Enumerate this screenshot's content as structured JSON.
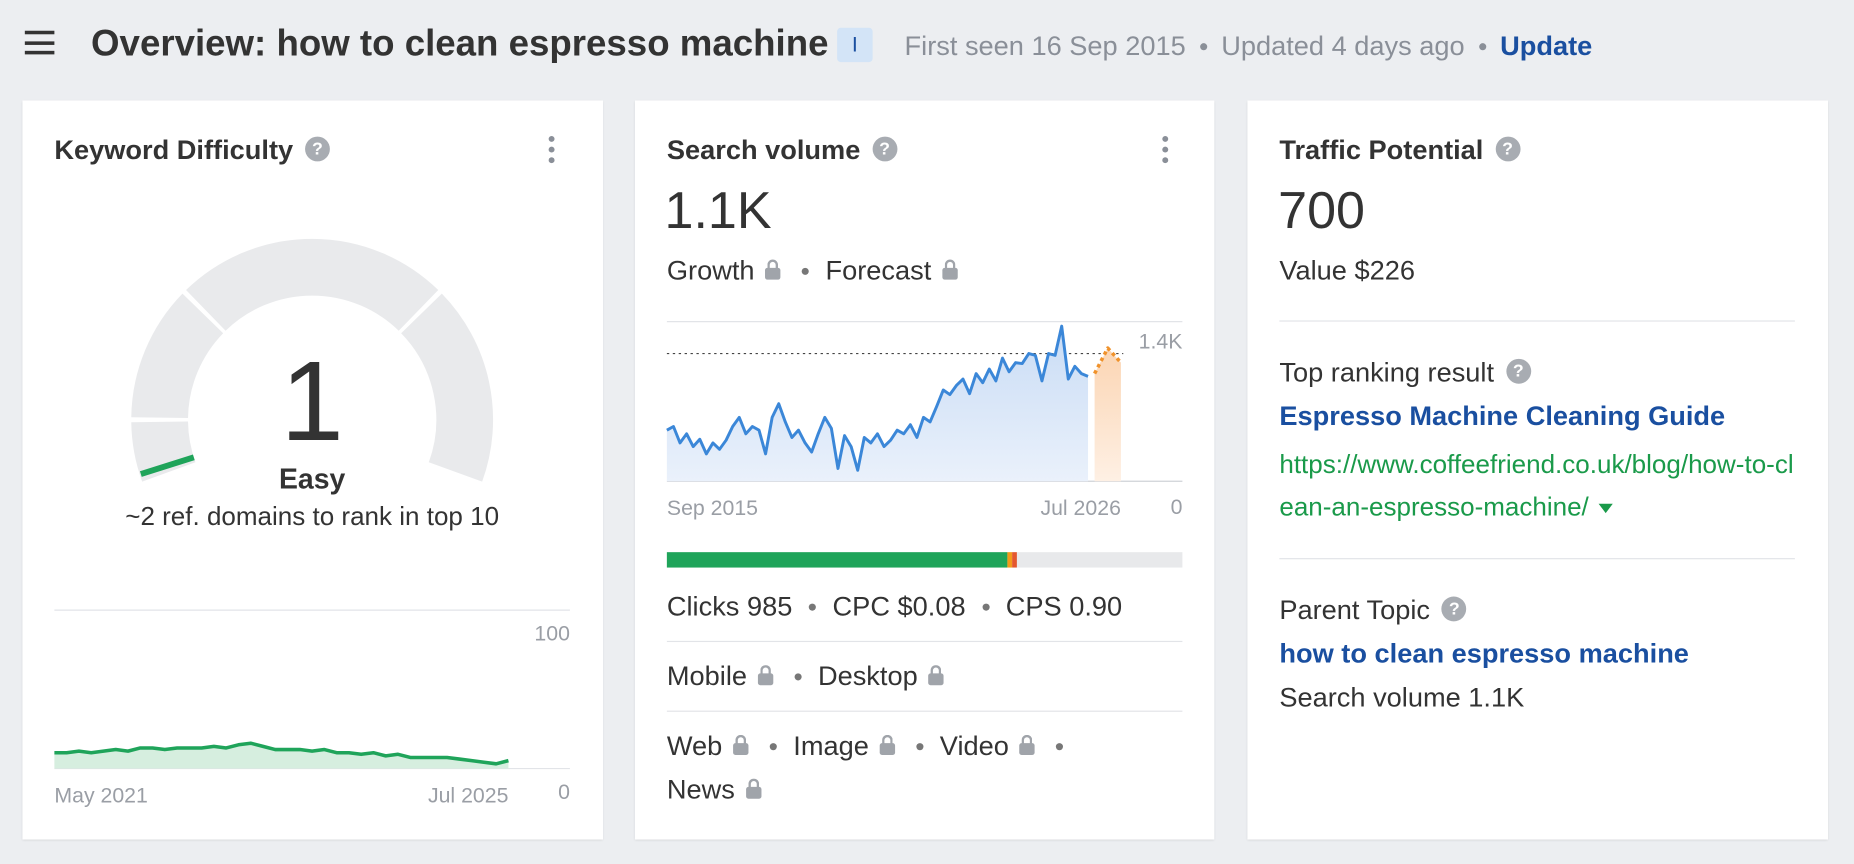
{
  "header": {
    "title": "Overview: how to clean espresso machine",
    "intent_badge": "I",
    "first_seen": "First seen 16 Sep 2015",
    "updated": "Updated 4 days ago",
    "update_link": "Update"
  },
  "keyword_difficulty": {
    "title": "Keyword Difficulty",
    "score": 1,
    "label": "Easy",
    "note": "~2 ref. domains to rank in top 10",
    "chart": {
      "type": "area",
      "color": "#1fa45a",
      "x_labels": [
        "May 2021",
        "Jul 2025"
      ],
      "ylim": [
        0,
        100
      ],
      "yticks": [
        0,
        100
      ],
      "values": [
        10,
        10,
        11,
        10,
        11,
        12,
        11,
        13,
        13,
        12,
        13,
        13,
        13,
        14,
        13,
        15,
        16,
        14,
        12,
        12,
        12,
        11,
        12,
        10,
        10,
        9,
        10,
        8,
        9,
        7,
        7,
        7,
        7,
        6,
        5,
        4,
        3,
        5
      ]
    }
  },
  "search_volume": {
    "title": "Search volume",
    "volume": "1.1K",
    "metrics": [
      "Growth",
      "Forecast"
    ],
    "chart": {
      "type": "line",
      "x_labels": [
        "Sep 2015",
        "Jul 2026"
      ],
      "ylim": [
        0,
        1750
      ],
      "yticks": [
        0,
        {
          "value": 1400,
          "label": "1.4K"
        }
      ],
      "series": [
        {
          "color": "#3b87d8",
          "values": [
            560,
            600,
            420,
            520,
            380,
            460,
            300,
            420,
            350,
            450,
            600,
            700,
            520,
            600,
            560,
            300,
            700,
            850,
            650,
            480,
            560,
            420,
            320,
            520,
            700,
            580,
            140,
            500,
            380,
            120,
            480,
            420,
            520,
            380,
            450,
            560,
            520,
            620,
            480,
            700,
            650,
            820,
            1000,
            950,
            1050,
            1120,
            960,
            1180,
            1080,
            1230,
            1100,
            1350,
            1200,
            1300,
            1290,
            1400,
            1380,
            1100,
            1400,
            1380,
            1700,
            1120,
            1260,
            1180,
            1150,
            null,
            null,
            null,
            null,
            null
          ]
        },
        {
          "color": "#f0922b",
          "values": [
            null,
            null,
            null,
            null,
            null,
            null,
            null,
            null,
            null,
            null,
            null,
            null,
            null,
            null,
            null,
            null,
            null,
            null,
            null,
            null,
            null,
            null,
            null,
            null,
            null,
            null,
            null,
            null,
            null,
            null,
            null,
            null,
            null,
            null,
            null,
            null,
            null,
            null,
            null,
            null,
            null,
            null,
            null,
            null,
            null,
            null,
            null,
            null,
            null,
            null,
            null,
            null,
            null,
            null,
            null,
            null,
            null,
            null,
            null,
            null,
            null,
            null,
            null,
            null,
            null,
            1180,
            1320,
            1460,
            1380,
            1300
          ]
        }
      ]
    },
    "click_bar": [
      {
        "color": "#1fa45a",
        "value": 66
      },
      {
        "color": "#f29a1a",
        "value": 1
      },
      {
        "color": "#e4572e",
        "value": 1
      }
    ],
    "stats": [
      "Clicks 985",
      "CPC $0.08",
      "CPS 0.90"
    ],
    "devices": [
      "Mobile",
      "Desktop"
    ],
    "serp_types": [
      "Web",
      "Image",
      "Video",
      "News"
    ]
  },
  "traffic_potential": {
    "title": "Traffic Potential",
    "value": "700",
    "value_usd": "Value $226",
    "top_result_title": "Top ranking result",
    "top_result_name": "Espresso Machine Cleaning Guide",
    "top_result_url": "https://www.coffeefriend.co.uk/blog/how-to-clean-an-espresso-machine/",
    "parent_topic_title": "Parent Topic",
    "parent_topic": "how to clean espresso machine",
    "parent_volume": "Search volume 1.1K"
  }
}
